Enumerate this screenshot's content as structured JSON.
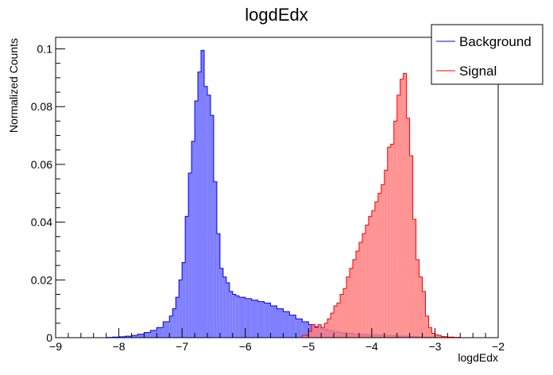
{
  "chart_data": {
    "type": "area",
    "title": "logdEdx",
    "xlabel": "logdEdx",
    "ylabel": "Normalized Counts",
    "xlim": [
      -9,
      -2
    ],
    "ylim": [
      0,
      0.104
    ],
    "x_ticks": [
      -9,
      -8,
      -7,
      -6,
      -5,
      -4,
      -3,
      -2
    ],
    "x_tick_labels": [
      "−9",
      "−8",
      "−7",
      "−6",
      "−5",
      "−4",
      "−3",
      "−2"
    ],
    "y_ticks": [
      0,
      0.02,
      0.04,
      0.06,
      0.08,
      0.1
    ],
    "y_tick_labels": [
      "0",
      "0.02",
      "0.04",
      "0.06",
      "0.08",
      "0.1"
    ],
    "grid": false,
    "legend_position": "top-right",
    "bin_edges": [
      -8.0,
      -7.1,
      -2.9
    ],
    "series": [
      {
        "name": "Background",
        "line_color": "#0000ff",
        "fill_color": "#8080ff",
        "bins": [
          [
            -8.2,
            -8.1,
            0.0001
          ],
          [
            -8.1,
            -8.0,
            0.0002
          ],
          [
            -8.0,
            -7.9,
            0.0003
          ],
          [
            -7.9,
            -7.8,
            0.0005
          ],
          [
            -7.8,
            -7.7,
            0.0008
          ],
          [
            -7.7,
            -7.6,
            0.0012
          ],
          [
            -7.6,
            -7.5,
            0.0018
          ],
          [
            -7.5,
            -7.4,
            0.0025
          ],
          [
            -7.4,
            -7.3,
            0.0035
          ],
          [
            -7.3,
            -7.2,
            0.0055
          ],
          [
            -7.2,
            -7.15,
            0.0075
          ],
          [
            -7.15,
            -7.1,
            0.01
          ],
          [
            -7.1,
            -7.05,
            0.014
          ],
          [
            -7.05,
            -7.0,
            0.02
          ],
          [
            -7.0,
            -6.95,
            0.026
          ],
          [
            -6.95,
            -6.9,
            0.042
          ],
          [
            -6.9,
            -6.85,
            0.057
          ],
          [
            -6.85,
            -6.8,
            0.068
          ],
          [
            -6.8,
            -6.75,
            0.082
          ],
          [
            -6.75,
            -6.7,
            0.092
          ],
          [
            -6.7,
            -6.65,
            0.0995
          ],
          [
            -6.65,
            -6.6,
            0.087
          ],
          [
            -6.6,
            -6.55,
            0.084
          ],
          [
            -6.55,
            -6.5,
            0.077
          ],
          [
            -6.5,
            -6.45,
            0.054
          ],
          [
            -6.45,
            -6.4,
            0.036
          ],
          [
            -6.4,
            -6.35,
            0.024
          ],
          [
            -6.35,
            -6.3,
            0.021
          ],
          [
            -6.3,
            -6.25,
            0.019
          ],
          [
            -6.25,
            -6.2,
            0.016
          ],
          [
            -6.2,
            -6.15,
            0.015
          ],
          [
            -6.15,
            -6.1,
            0.0145
          ],
          [
            -6.1,
            -6.0,
            0.014
          ],
          [
            -6.0,
            -5.9,
            0.0135
          ],
          [
            -5.9,
            -5.8,
            0.013
          ],
          [
            -5.8,
            -5.7,
            0.0125
          ],
          [
            -5.7,
            -5.6,
            0.012
          ],
          [
            -5.6,
            -5.5,
            0.011
          ],
          [
            -5.5,
            -5.4,
            0.01
          ],
          [
            -5.4,
            -5.3,
            0.009
          ],
          [
            -5.3,
            -5.2,
            0.0078
          ],
          [
            -5.2,
            -5.1,
            0.0065
          ],
          [
            -5.1,
            -5.0,
            0.0055
          ],
          [
            -5.0,
            -4.9,
            0.0045
          ],
          [
            -4.9,
            -4.8,
            0.0038
          ],
          [
            -4.8,
            -4.7,
            0.003
          ],
          [
            -4.7,
            -4.6,
            0.0025
          ],
          [
            -4.6,
            -4.5,
            0.002
          ],
          [
            -4.5,
            -4.4,
            0.0017
          ],
          [
            -4.4,
            -4.3,
            0.0015
          ],
          [
            -4.3,
            -4.2,
            0.0013
          ],
          [
            -4.2,
            -4.1,
            0.0012
          ],
          [
            -4.1,
            -4.0,
            0.0011
          ],
          [
            -4.0,
            -3.9,
            0.001
          ],
          [
            -3.9,
            -3.8,
            0.0009
          ],
          [
            -3.8,
            -3.7,
            0.0008
          ],
          [
            -3.7,
            -3.6,
            0.0007
          ],
          [
            -3.6,
            -3.5,
            0.0006
          ],
          [
            -3.5,
            -3.4,
            0.0005
          ],
          [
            -3.4,
            -3.3,
            0.0004
          ],
          [
            -3.3,
            -3.2,
            0.0003
          ],
          [
            -3.2,
            -3.1,
            0.0002
          ],
          [
            -3.1,
            -3.0,
            0.0002
          ],
          [
            -3.0,
            -2.9,
            0.0001
          ]
        ]
      },
      {
        "name": "Signal",
        "line_color": "#ff0000",
        "fill_color": "#ff7f7f",
        "bins": [
          [
            -5.1,
            -5.0,
            0.0008
          ],
          [
            -5.0,
            -4.95,
            0.0022
          ],
          [
            -4.95,
            -4.9,
            0.0045
          ],
          [
            -4.9,
            -4.85,
            0.0035
          ],
          [
            -4.85,
            -4.8,
            0.0045
          ],
          [
            -4.8,
            -4.75,
            0.0035
          ],
          [
            -4.75,
            -4.7,
            0.005
          ],
          [
            -4.7,
            -4.65,
            0.0065
          ],
          [
            -4.65,
            -4.6,
            0.0085
          ],
          [
            -4.6,
            -4.55,
            0.011
          ],
          [
            -4.55,
            -4.5,
            0.012
          ],
          [
            -4.5,
            -4.45,
            0.015
          ],
          [
            -4.45,
            -4.4,
            0.017
          ],
          [
            -4.4,
            -4.35,
            0.021
          ],
          [
            -4.35,
            -4.3,
            0.024
          ],
          [
            -4.3,
            -4.25,
            0.027
          ],
          [
            -4.25,
            -4.2,
            0.03
          ],
          [
            -4.2,
            -4.15,
            0.033
          ],
          [
            -4.15,
            -4.1,
            0.036
          ],
          [
            -4.1,
            -4.05,
            0.039
          ],
          [
            -4.05,
            -4.0,
            0.042
          ],
          [
            -4.0,
            -3.95,
            0.044
          ],
          [
            -3.95,
            -3.9,
            0.047
          ],
          [
            -3.9,
            -3.85,
            0.05
          ],
          [
            -3.85,
            -3.8,
            0.053
          ],
          [
            -3.8,
            -3.75,
            0.058
          ],
          [
            -3.75,
            -3.7,
            0.066
          ],
          [
            -3.7,
            -3.65,
            0.067
          ],
          [
            -3.65,
            -3.6,
            0.075
          ],
          [
            -3.6,
            -3.55,
            0.084
          ],
          [
            -3.55,
            -3.5,
            0.0895
          ],
          [
            -3.5,
            -3.45,
            0.0915
          ],
          [
            -3.45,
            -3.4,
            0.076
          ],
          [
            -3.4,
            -3.35,
            0.063
          ],
          [
            -3.35,
            -3.3,
            0.041
          ],
          [
            -3.3,
            -3.25,
            0.027
          ],
          [
            -3.25,
            -3.2,
            0.021
          ],
          [
            -3.2,
            -3.15,
            0.016
          ],
          [
            -3.15,
            -3.1,
            0.0075
          ],
          [
            -3.1,
            -3.05,
            0.0035
          ],
          [
            -3.05,
            -3.0,
            0.0015
          ],
          [
            -3.0,
            -2.95,
            0.001
          ],
          [
            -2.95,
            -2.9,
            0.0008
          ],
          [
            -2.9,
            -2.85,
            0.0004
          ],
          [
            -2.85,
            -2.8,
            0.0003
          ],
          [
            -2.8,
            -2.7,
            0.0002
          ],
          [
            -2.7,
            -2.6,
            0.0001
          ]
        ]
      }
    ]
  }
}
